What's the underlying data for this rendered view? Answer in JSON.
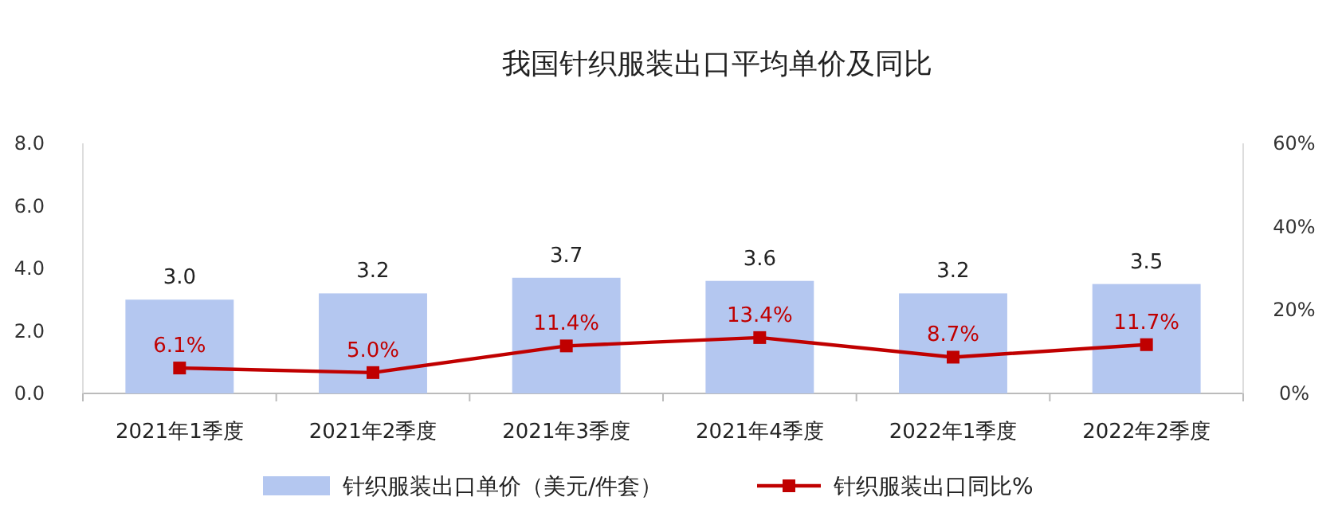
{
  "chart_data": {
    "type": "bar",
    "title": "我国针织服装出口平均单价及同比",
    "categories": [
      "2021年1季度",
      "2021年2季度",
      "2021年3季度",
      "2021年4季度",
      "2022年1季度",
      "2022年2季度"
    ],
    "series": [
      {
        "name": "针织服装出口单价（美元/件套）",
        "color": "#b4c7f0",
        "values": [
          3.0,
          3.2,
          3.7,
          3.6,
          3.2,
          3.5
        ],
        "value_labels": [
          "3.0",
          "3.2",
          "3.7",
          "3.6",
          "3.2",
          "3.5"
        ]
      },
      {
        "name": "针织服装出口同比%",
        "type": "line",
        "axis": "y2",
        "color": "#c00000",
        "marker": "square",
        "values": [
          6.1,
          5.0,
          11.4,
          13.4,
          8.7,
          11.7
        ],
        "value_labels": [
          "6.1%",
          "5.0%",
          "11.4%",
          "13.4%",
          "8.7%",
          "11.7%"
        ]
      }
    ],
    "ylim": [
      0,
      8
    ],
    "yticks": [
      {
        "value": 0,
        "label": "0.0"
      },
      {
        "value": 2,
        "label": "2.0"
      },
      {
        "value": 4,
        "label": "4.0"
      },
      {
        "value": 6,
        "label": "6.0"
      },
      {
        "value": 8,
        "label": "8.0"
      }
    ],
    "y2lim": [
      0,
      60
    ],
    "y2ticks": [
      {
        "value": 0,
        "label": "0%"
      },
      {
        "value": 20,
        "label": "20%"
      },
      {
        "value": 40,
        "label": "40%"
      },
      {
        "value": 60,
        "label": "60%"
      }
    ],
    "legend": "bottom"
  }
}
